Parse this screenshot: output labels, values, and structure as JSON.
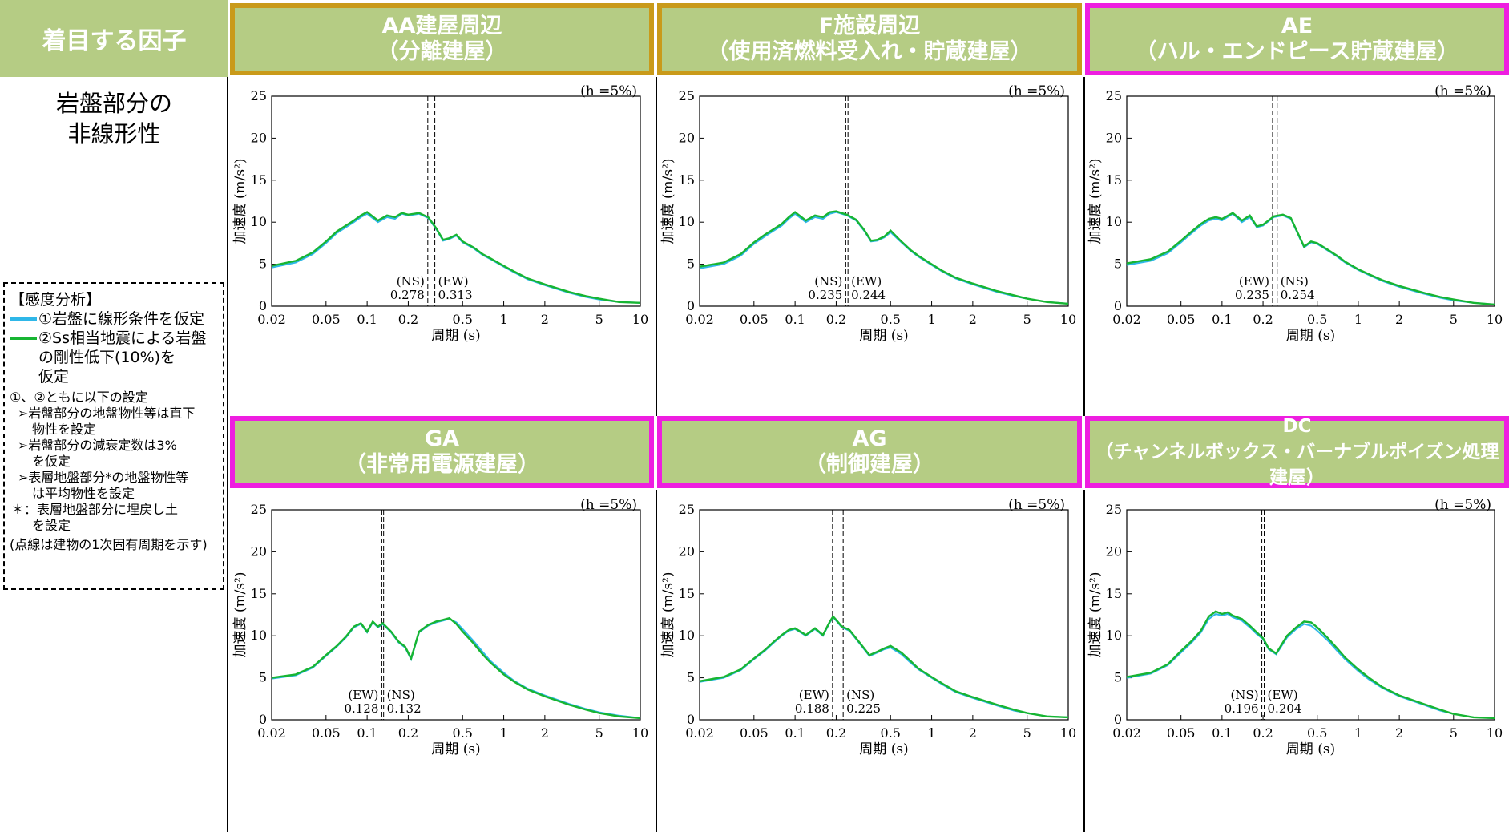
{
  "colors": {
    "header_green": "#b5cc84",
    "border_gold": "#c99a1a",
    "border_magenta": "#ee1ee0",
    "series_linear": "#2fb7e8",
    "series_degraded": "#17b532"
  },
  "row_header": {
    "column_title": "着目する因子",
    "factor_line1": "岩盤部分の",
    "factor_line2": "非線形性"
  },
  "legend": {
    "title": "【感度分析】",
    "item1": "①岩盤に線形条件を仮定",
    "item2_line1": "②Ss相当地震による岩盤",
    "item2_line2": "の剛性低下(10%)を",
    "item2_line3": "仮定",
    "common": "①、②ともに以下の設定",
    "bullet1_line1": "➢岩盤部分の地盤物性等は直下",
    "bullet1_line2": "物性を設定",
    "bullet2_line1": "➢岩盤部分の減衰定数は3%",
    "bullet2_line2": "を仮定",
    "bullet3_line1": "➢表層地盤部分*の地盤物性等",
    "bullet3_line2": "は平均物性を設定",
    "note_line1": "＊：表層地盤部分に埋戻し土",
    "note_line2": "を設定",
    "footnote": "(点線は建物の1次固有周期を示す)"
  },
  "panels": [
    {
      "line1": "AA建屋周辺",
      "line2": "（分離建屋）",
      "border": "gold"
    },
    {
      "line1": "F施設周辺",
      "line2": "（使用済燃料受入れ・貯蔵建屋）",
      "border": "gold"
    },
    {
      "line1": "AE",
      "line2": "（ハル・エンドピース貯蔵建屋）",
      "border": "magenta"
    },
    {
      "line1": "GA",
      "line2": "（非常用電源建屋）",
      "border": "magenta"
    },
    {
      "line1": "AG",
      "line2": "（制御建屋）",
      "border": "magenta"
    },
    {
      "line1": "DC",
      "line2": "（チャンネルボックス・バーナブルポイズン処理建屋）",
      "border": "magenta"
    }
  ],
  "chart_data": [
    {
      "type": "line",
      "title": "AA建屋周辺（分離建屋）",
      "xlabel": "周期 (s)",
      "ylabel": "加速度 (m/s²)",
      "xscale": "log",
      "xlim": [
        0.02,
        10
      ],
      "ylim": [
        0,
        25
      ],
      "xticks": [
        "0.02",
        "0.05",
        "0.1",
        "0.2",
        "0.5",
        "1",
        "2",
        "5",
        "10"
      ],
      "yticks": [
        "0",
        "5",
        "10",
        "15",
        "20",
        "25"
      ],
      "annotation": "(h =5%)",
      "periods": [
        {
          "label": "(NS)",
          "value": 0.278
        },
        {
          "label": "(EW)",
          "value": 0.313
        }
      ],
      "period_texts": [
        "0.278",
        "0.313"
      ],
      "x": [
        0.02,
        0.03,
        0.04,
        0.05,
        0.06,
        0.07,
        0.08,
        0.09,
        0.1,
        0.12,
        0.14,
        0.16,
        0.18,
        0.2,
        0.24,
        0.28,
        0.32,
        0.36,
        0.4,
        0.45,
        0.5,
        0.6,
        0.7,
        0.8,
        1,
        1.2,
        1.5,
        2,
        3,
        4,
        5,
        7,
        10
      ],
      "series": [
        {
          "name": "①",
          "values": [
            4.6,
            5.2,
            6.2,
            7.5,
            8.7,
            9.4,
            10.0,
            10.6,
            11.0,
            10.0,
            10.6,
            10.4,
            11.0,
            10.8,
            11.0,
            10.5,
            9.2,
            7.8,
            8.0,
            8.4,
            7.6,
            6.9,
            6.1,
            5.6,
            4.7,
            4.0,
            3.2,
            2.5,
            1.6,
            1.1,
            0.8,
            0.5,
            0.4
          ]
        },
        {
          "name": "②",
          "values": [
            4.8,
            5.4,
            6.4,
            7.7,
            8.9,
            9.6,
            10.2,
            10.8,
            11.2,
            10.2,
            10.8,
            10.6,
            11.1,
            10.9,
            11.1,
            10.6,
            9.3,
            7.9,
            8.1,
            8.5,
            7.7,
            7.0,
            6.2,
            5.7,
            4.8,
            4.1,
            3.3,
            2.6,
            1.7,
            1.2,
            0.9,
            0.5,
            0.4
          ]
        }
      ]
    },
    {
      "type": "line",
      "title": "F施設周辺（使用済燃料受入れ・貯蔵建屋）",
      "xlabel": "周期 (s)",
      "ylabel": "加速度 (m/s²)",
      "xscale": "log",
      "xlim": [
        0.02,
        10
      ],
      "ylim": [
        0,
        25
      ],
      "xticks": [
        "0.02",
        "0.05",
        "0.1",
        "0.2",
        "0.5",
        "1",
        "2",
        "5",
        "10"
      ],
      "yticks": [
        "0",
        "5",
        "10",
        "15",
        "20",
        "25"
      ],
      "annotation": "(h =5%)",
      "periods": [
        {
          "label": "(NS)",
          "value": 0.235
        },
        {
          "label": "(EW)",
          "value": 0.244
        }
      ],
      "period_texts": [
        "0.235",
        "0.244"
      ],
      "x": [
        0.02,
        0.03,
        0.04,
        0.05,
        0.06,
        0.07,
        0.08,
        0.09,
        0.1,
        0.12,
        0.14,
        0.16,
        0.18,
        0.2,
        0.24,
        0.28,
        0.32,
        0.36,
        0.4,
        0.45,
        0.5,
        0.6,
        0.7,
        0.8,
        1,
        1.2,
        1.5,
        2,
        3,
        4,
        5,
        7,
        10
      ],
      "series": [
        {
          "name": "①",
          "values": [
            4.5,
            5.0,
            6.0,
            7.4,
            8.3,
            9.0,
            9.6,
            10.4,
            11.0,
            10.0,
            10.6,
            10.4,
            11.0,
            11.2,
            10.8,
            10.2,
            9.0,
            7.7,
            7.8,
            8.2,
            8.8,
            7.6,
            6.6,
            5.9,
            4.9,
            4.1,
            3.3,
            2.6,
            1.7,
            1.2,
            0.9,
            0.5,
            0.3
          ]
        },
        {
          "name": "②",
          "values": [
            4.7,
            5.2,
            6.2,
            7.6,
            8.5,
            9.2,
            9.8,
            10.6,
            11.2,
            10.2,
            10.8,
            10.6,
            11.2,
            11.3,
            10.9,
            10.3,
            9.1,
            7.8,
            7.9,
            8.3,
            9.0,
            7.7,
            6.7,
            6.0,
            5.0,
            4.2,
            3.4,
            2.7,
            1.8,
            1.3,
            0.9,
            0.5,
            0.3
          ]
        }
      ]
    },
    {
      "type": "line",
      "title": "AE（ハル・エンドピース貯蔵建屋）",
      "xlabel": "周期 (s)",
      "ylabel": "加速度 (m/s²)",
      "xscale": "log",
      "xlim": [
        0.02,
        10
      ],
      "ylim": [
        0,
        25
      ],
      "xticks": [
        "0.02",
        "0.05",
        "0.1",
        "0.2",
        "0.5",
        "1",
        "2",
        "5",
        "10"
      ],
      "yticks": [
        "0",
        "5",
        "10",
        "15",
        "20",
        "25"
      ],
      "annotation": "(h =5%)",
      "periods": [
        {
          "label": "(EW)",
          "value": 0.235
        },
        {
          "label": "(NS)",
          "value": 0.254
        }
      ],
      "period_texts": [
        "0.235",
        "0.254"
      ],
      "x": [
        0.02,
        0.03,
        0.04,
        0.05,
        0.06,
        0.07,
        0.08,
        0.09,
        0.1,
        0.12,
        0.14,
        0.16,
        0.18,
        0.2,
        0.24,
        0.28,
        0.32,
        0.36,
        0.4,
        0.45,
        0.5,
        0.6,
        0.7,
        0.8,
        1,
        1.2,
        1.5,
        2,
        3,
        4,
        5,
        7,
        10
      ],
      "series": [
        {
          "name": "①",
          "values": [
            4.9,
            5.4,
            6.3,
            7.6,
            8.7,
            9.6,
            10.2,
            10.4,
            10.2,
            11.0,
            10.0,
            10.6,
            9.4,
            9.6,
            10.6,
            10.8,
            10.4,
            8.6,
            7.0,
            7.6,
            7.4,
            6.6,
            5.9,
            5.2,
            4.3,
            3.7,
            3.0,
            2.3,
            1.5,
            1.0,
            0.7,
            0.4,
            0.2
          ]
        },
        {
          "name": "②",
          "values": [
            5.1,
            5.6,
            6.5,
            7.8,
            8.9,
            9.8,
            10.4,
            10.6,
            10.4,
            11.1,
            10.2,
            10.8,
            9.5,
            9.7,
            10.7,
            10.9,
            10.5,
            8.7,
            7.1,
            7.7,
            7.5,
            6.7,
            6.0,
            5.3,
            4.4,
            3.8,
            3.1,
            2.4,
            1.6,
            1.1,
            0.8,
            0.4,
            0.2
          ]
        }
      ]
    },
    {
      "type": "line",
      "title": "GA（非常用電源建屋）",
      "xlabel": "周期 (s)",
      "ylabel": "加速度 (m/s²)",
      "xscale": "log",
      "xlim": [
        0.02,
        10
      ],
      "ylim": [
        0,
        25
      ],
      "xticks": [
        "0.02",
        "0.05",
        "0.1",
        "0.2",
        "0.5",
        "1",
        "2",
        "5",
        "10"
      ],
      "yticks": [
        "0",
        "5",
        "10",
        "15",
        "20",
        "25"
      ],
      "annotation": "(h =5%)",
      "periods": [
        {
          "label": "(EW)",
          "value": 0.128
        },
        {
          "label": "(NS)",
          "value": 0.132
        }
      ],
      "period_texts": [
        "0.128",
        "0.132"
      ],
      "x": [
        0.02,
        0.03,
        0.04,
        0.05,
        0.06,
        0.07,
        0.08,
        0.09,
        0.1,
        0.11,
        0.12,
        0.13,
        0.15,
        0.17,
        0.19,
        0.21,
        0.24,
        0.28,
        0.32,
        0.36,
        0.4,
        0.45,
        0.5,
        0.6,
        0.7,
        0.8,
        1,
        1.2,
        1.5,
        2,
        3,
        4,
        5,
        7,
        10
      ],
      "series": [
        {
          "name": "①",
          "values": [
            4.9,
            5.3,
            6.2,
            7.6,
            8.7,
            9.8,
            11.0,
            11.4,
            10.4,
            11.6,
            11.0,
            11.4,
            10.4,
            9.2,
            8.6,
            7.2,
            10.4,
            11.2,
            11.6,
            11.8,
            12.0,
            11.6,
            10.8,
            9.4,
            8.1,
            7.0,
            5.6,
            4.6,
            3.7,
            2.9,
            1.9,
            1.3,
            0.9,
            0.5,
            0.2
          ]
        },
        {
          "name": "②",
          "values": [
            5.0,
            5.4,
            6.3,
            7.7,
            8.8,
            9.9,
            11.1,
            11.5,
            10.5,
            11.7,
            11.1,
            11.5,
            10.5,
            9.3,
            8.7,
            7.3,
            10.5,
            11.3,
            11.7,
            11.9,
            12.1,
            11.4,
            10.5,
            9.1,
            7.8,
            6.8,
            5.4,
            4.5,
            3.6,
            2.8,
            1.8,
            1.2,
            0.8,
            0.4,
            0.2
          ]
        }
      ]
    },
    {
      "type": "line",
      "title": "AG（制御建屋）",
      "xlabel": "周期 (s)",
      "ylabel": "加速度 (m/s²)",
      "xscale": "log",
      "xlim": [
        0.02,
        10
      ],
      "ylim": [
        0,
        25
      ],
      "xticks": [
        "0.02",
        "0.05",
        "0.1",
        "0.2",
        "0.5",
        "1",
        "2",
        "5",
        "10"
      ],
      "yticks": [
        "0",
        "5",
        "10",
        "15",
        "20",
        "25"
      ],
      "annotation": "(h =5%)",
      "periods": [
        {
          "label": "(EW)",
          "value": 0.188
        },
        {
          "label": "(NS)",
          "value": 0.225
        }
      ],
      "period_texts": [
        "0.188",
        "0.225"
      ],
      "x": [
        0.02,
        0.03,
        0.04,
        0.05,
        0.06,
        0.07,
        0.08,
        0.09,
        0.1,
        0.12,
        0.14,
        0.16,
        0.18,
        0.19,
        0.2,
        0.22,
        0.25,
        0.3,
        0.35,
        0.4,
        0.45,
        0.5,
        0.6,
        0.7,
        0.8,
        1,
        1.2,
        1.5,
        2,
        3,
        4,
        5,
        7,
        10
      ],
      "series": [
        {
          "name": "①",
          "values": [
            4.5,
            5.0,
            5.9,
            7.2,
            8.2,
            9.2,
            10.0,
            10.6,
            10.8,
            10.0,
            10.8,
            10.0,
            11.6,
            12.2,
            11.8,
            11.0,
            10.6,
            9.0,
            7.6,
            8.0,
            8.4,
            8.6,
            7.8,
            6.8,
            6.0,
            5.0,
            4.2,
            3.3,
            2.6,
            1.7,
            1.1,
            0.8,
            0.4,
            0.3
          ]
        },
        {
          "name": "②",
          "values": [
            4.6,
            5.1,
            6.0,
            7.3,
            8.3,
            9.3,
            10.1,
            10.7,
            10.9,
            10.1,
            10.9,
            10.1,
            11.7,
            12.3,
            11.9,
            11.1,
            10.7,
            9.1,
            7.7,
            8.1,
            8.5,
            8.8,
            8.0,
            7.0,
            6.1,
            5.1,
            4.3,
            3.4,
            2.7,
            1.8,
            1.2,
            0.8,
            0.4,
            0.3
          ]
        }
      ]
    },
    {
      "type": "line",
      "title": "DC（チャンネルボックス・バーナブルポイズン処理建屋）",
      "xlabel": "周期 (s)",
      "ylabel": "加速度 (m/s²)",
      "xscale": "log",
      "xlim": [
        0.02,
        10
      ],
      "ylim": [
        0,
        25
      ],
      "xticks": [
        "0.02",
        "0.05",
        "0.1",
        "0.2",
        "0.5",
        "1",
        "2",
        "5",
        "10"
      ],
      "yticks": [
        "0",
        "5",
        "10",
        "15",
        "20",
        "25"
      ],
      "annotation": "(h =5%)",
      "periods": [
        {
          "label": "(NS)",
          "value": 0.196
        },
        {
          "label": "(EW)",
          "value": 0.204
        }
      ],
      "period_texts": [
        "0.196",
        "0.204"
      ],
      "x": [
        0.02,
        0.03,
        0.04,
        0.05,
        0.06,
        0.07,
        0.08,
        0.09,
        0.1,
        0.11,
        0.12,
        0.14,
        0.16,
        0.18,
        0.2,
        0.22,
        0.25,
        0.3,
        0.35,
        0.4,
        0.45,
        0.5,
        0.6,
        0.7,
        0.8,
        1,
        1.2,
        1.5,
        2,
        3,
        4,
        5,
        7,
        10
      ],
      "series": [
        {
          "name": "①",
          "values": [
            5.0,
            5.5,
            6.5,
            8.0,
            9.2,
            10.4,
            12.0,
            12.6,
            12.4,
            12.6,
            12.2,
            11.8,
            11.0,
            10.2,
            9.6,
            8.4,
            7.8,
            9.8,
            10.8,
            11.4,
            11.2,
            10.6,
            9.4,
            8.2,
            7.2,
            5.8,
            4.8,
            3.8,
            2.8,
            1.8,
            1.1,
            0.7,
            0.3,
            0.2
          ]
        },
        {
          "name": "②",
          "values": [
            5.1,
            5.6,
            6.6,
            8.2,
            9.4,
            10.6,
            12.3,
            12.9,
            12.6,
            12.8,
            12.4,
            12.0,
            11.2,
            10.4,
            9.7,
            8.5,
            7.9,
            10.0,
            11.0,
            11.7,
            11.6,
            11.0,
            9.7,
            8.5,
            7.4,
            6.0,
            5.0,
            3.9,
            2.9,
            1.9,
            1.2,
            0.7,
            0.3,
            0.2
          ]
        }
      ]
    }
  ]
}
